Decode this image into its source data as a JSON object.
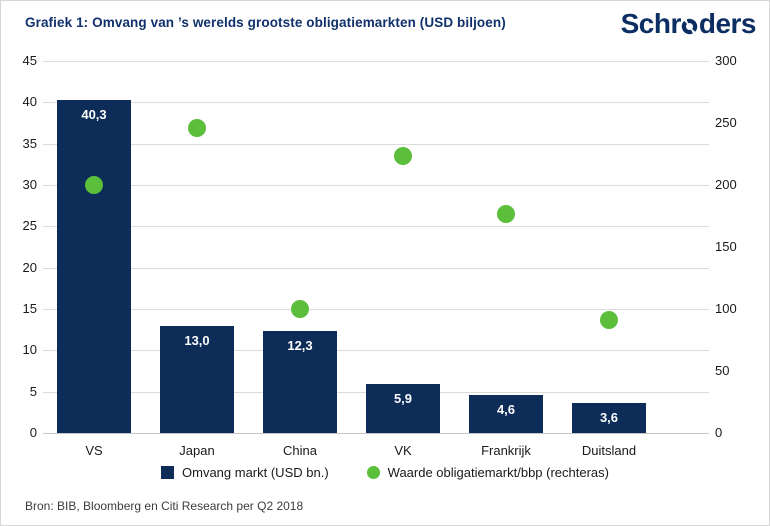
{
  "header": {
    "title": "Grafiek 1: Omvang van ’s werelds grootste obligatiemarkten (USD biljoen)",
    "logo": {
      "text": "Schroders",
      "pre": "Schr",
      "post": "ders"
    }
  },
  "chart_data": {
    "type": "bar",
    "categories": [
      "VS",
      "Japan",
      "China",
      "VK",
      "Frankrijk",
      "Duitsland"
    ],
    "series": [
      {
        "name": "Omvang markt (USD bn.)",
        "type": "bar",
        "axis": "left",
        "values": [
          40.3,
          13.0,
          12.3,
          5.9,
          4.6,
          3.6
        ],
        "value_labels": [
          "40,3",
          "13,0",
          "12,3",
          "5,9",
          "4,6",
          "3,6"
        ],
        "color": "#0d2c58"
      },
      {
        "name": "Waarde obligatiemarkt/bbp (rechteras)",
        "type": "scatter",
        "axis": "right",
        "values": [
          200,
          246,
          100,
          223,
          177,
          91
        ],
        "color": "#5bbf3b"
      }
    ],
    "left_axis": {
      "min": 0,
      "max": 45,
      "step": 5,
      "ticks": [
        0,
        5,
        10,
        15,
        20,
        25,
        30,
        35,
        40,
        45
      ]
    },
    "right_axis": {
      "min": 0,
      "max": 300,
      "step": 50,
      "ticks": [
        0,
        50,
        100,
        150,
        200,
        250,
        300
      ]
    },
    "grid": true,
    "legend_position": "bottom"
  },
  "legend": [
    {
      "label": "Omvang markt (USD bn.)",
      "swatch": "square",
      "color": "#0d2c58"
    },
    {
      "label": "Waarde obligatiemarkt/bbp (rechteras)",
      "swatch": "circle",
      "color": "#5bbf3b"
    }
  ],
  "footer": {
    "source": "Bron: BIB, Bloomberg en Citi Research per Q2 2018"
  },
  "colors": {
    "brand_navy": "#0c2e63",
    "title_navy": "#10316b",
    "bar_navy": "#0d2c58",
    "dot_green": "#5bbf3b",
    "gridline": "#dcdcdc"
  }
}
